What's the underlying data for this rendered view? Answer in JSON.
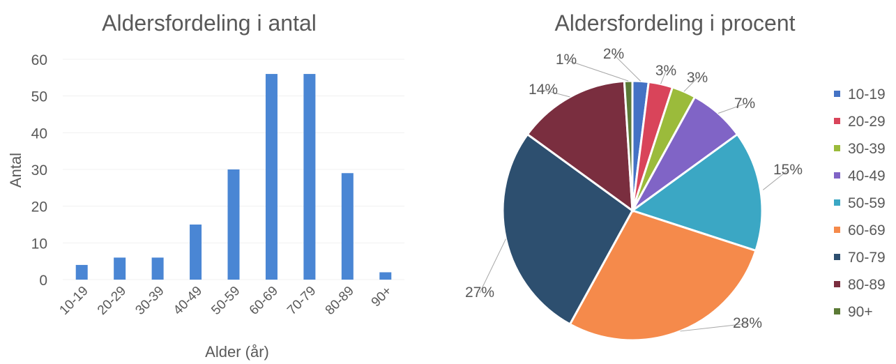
{
  "chart_data": [
    {
      "type": "bar",
      "title": "Aldersfordeling i antal",
      "xlabel": "Alder (år)",
      "ylabel": "Antal",
      "categories": [
        "10-19",
        "20-29",
        "30-39",
        "40-49",
        "50-59",
        "60-69",
        "70-79",
        "80-89",
        "90+"
      ],
      "values": [
        4,
        6,
        6,
        15,
        30,
        56,
        56,
        29,
        2
      ],
      "ylim": [
        0,
        60
      ],
      "yticks": [
        "0",
        "10",
        "20",
        "30",
        "40",
        "50",
        "60"
      ],
      "grid": true,
      "color": "#4a86d4"
    },
    {
      "type": "pie",
      "title": "Aldersfordeling i procent",
      "legend_position": "right",
      "slices": [
        {
          "name": "10-19",
          "value": 2,
          "label": "2%",
          "color": "#4472c4"
        },
        {
          "name": "20-29",
          "value": 3,
          "label": "3%",
          "color": "#d9445a"
        },
        {
          "name": "30-39",
          "value": 3,
          "label": "3%",
          "color": "#9bbb3b"
        },
        {
          "name": "40-49",
          "value": 7,
          "label": "7%",
          "color": "#8064c6"
        },
        {
          "name": "50-59",
          "value": 15,
          "label": "15%",
          "color": "#3ba7c4"
        },
        {
          "name": "60-69",
          "value": 28,
          "label": "28%",
          "color": "#f58a4b"
        },
        {
          "name": "70-79",
          "value": 27,
          "label": "27%",
          "color": "#2d4f6f"
        },
        {
          "name": "80-89",
          "value": 14,
          "label": "14%",
          "color": "#7a2e3f"
        },
        {
          "name": "90+",
          "value": 1,
          "label": "1%",
          "color": "#5b7a36"
        }
      ]
    }
  ]
}
